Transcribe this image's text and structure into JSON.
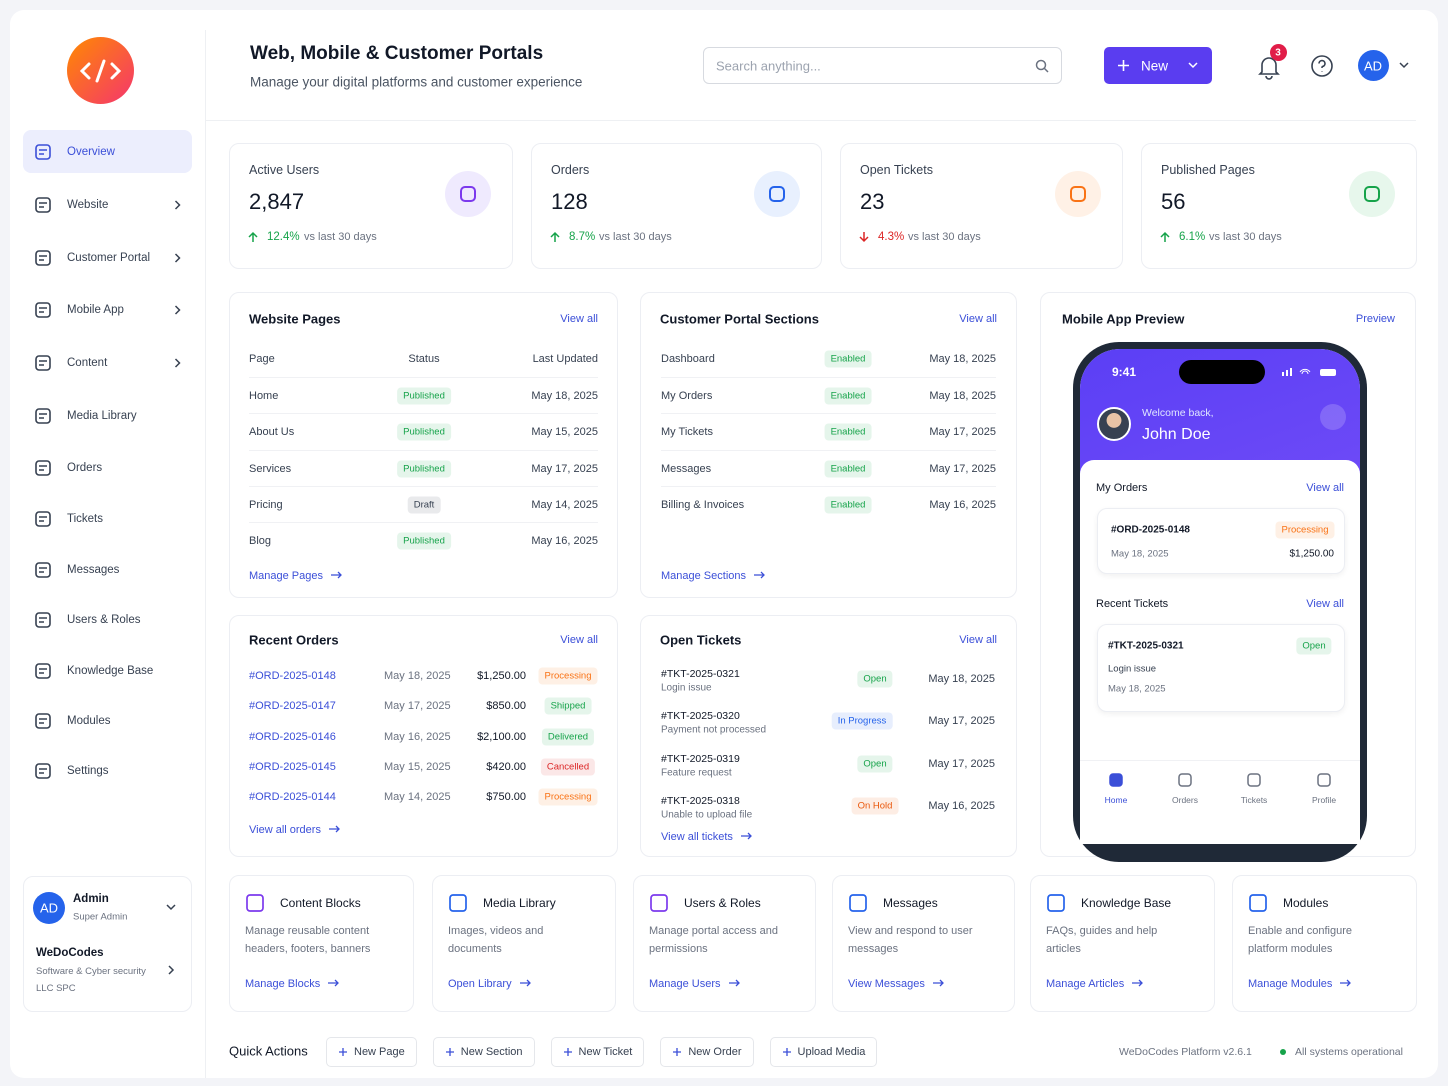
{
  "header": {
    "title": "Web, Mobile & Customer Portals",
    "subtitle": "Manage your digital platforms and customer experience",
    "search_placeholder": "Search anything...",
    "new_button": "New",
    "notification_count": "3",
    "avatar": "AD"
  },
  "sidebar": {
    "nav": [
      "Overview",
      "Website",
      "Customer Portal",
      "Mobile App",
      "Content",
      "Media Library",
      "Orders",
      "Tickets",
      "Messages",
      "Users & Roles",
      "Knowledge Base",
      "Modules",
      "Settings"
    ],
    "user": {
      "initials": "AD",
      "name": "Admin",
      "role": "Super Admin"
    },
    "org": {
      "name": "WeDoCodes",
      "description": "Software & Cyber security LLC SPC"
    }
  },
  "stats": [
    {
      "label": "Active Users",
      "value": "2,847",
      "change": "12.4%",
      "note": "vs last 30 days"
    },
    {
      "label": "Orders",
      "value": "128",
      "change": "8.7%",
      "note": "vs last 30 days"
    },
    {
      "label": "Open Tickets",
      "value": "23",
      "change": "4.3%",
      "note": "vs last 30 days"
    },
    {
      "label": "Published Pages",
      "value": "56",
      "change": "6.1%",
      "note": "vs last 30 days"
    }
  ],
  "badge_colors": {
    "Published": "#16a34a",
    "Draft": "#374151",
    "Enabled": "#16a34a",
    "Processing": "#f97316",
    "Shipped": "#16a34a",
    "Delivered": "#16a34a",
    "Cancelled": "#dc2626",
    "Open": "#16a34a",
    "In Progress": "#2563eb",
    "On Hold": "#ea580c"
  },
  "website_pages": {
    "title": "Website Pages",
    "view_all": "View all",
    "columns": [
      "Page",
      "Status",
      "Last Updated"
    ],
    "rows": [
      [
        "Home",
        "Published",
        "May 18, 2025"
      ],
      [
        "About Us",
        "Published",
        "May 15, 2025"
      ],
      [
        "Services",
        "Published",
        "May 17, 2025"
      ],
      [
        "Pricing",
        "Draft",
        "May 14, 2025"
      ],
      [
        "Blog",
        "Published",
        "May 16, 2025"
      ]
    ],
    "link": "Manage Pages"
  },
  "portal_sections": {
    "title": "Customer Portal Sections",
    "view_all": "View all",
    "rows": [
      [
        "Dashboard",
        "Enabled",
        "May 18, 2025"
      ],
      [
        "My Orders",
        "Enabled",
        "May 18, 2025"
      ],
      [
        "My Tickets",
        "Enabled",
        "May 17, 2025"
      ],
      [
        "Messages",
        "Enabled",
        "May 17, 2025"
      ],
      [
        "Billing & Invoices",
        "Enabled",
        "May 16, 2025"
      ]
    ],
    "link": "Manage Sections"
  },
  "mobile_preview": {
    "title": "Mobile App Preview",
    "link": "Preview",
    "time": "9:41",
    "welcome": "Welcome back,",
    "user": "John Doe",
    "orders_title": "My Orders",
    "orders_view_all": "View all",
    "order": {
      "id": "#ORD-2025-0148",
      "status": "Processing",
      "date": "May 18, 2025",
      "amount": "$1,250.00"
    },
    "tickets_title": "Recent Tickets",
    "tickets_view_all": "View all",
    "ticket": {
      "id": "#TKT-2025-0321",
      "status": "Open",
      "subject": "Login issue",
      "date": "May 18, 2025"
    },
    "tabs": [
      "Home",
      "Orders",
      "Tickets",
      "Profile"
    ]
  },
  "recent_orders": {
    "title": "Recent Orders",
    "view_all": "View all",
    "rows": [
      [
        "#ORD-2025-0148",
        "May 18, 2025",
        "$1,250.00",
        "Processing"
      ],
      [
        "#ORD-2025-0147",
        "May 17, 2025",
        "$850.00",
        "Shipped"
      ],
      [
        "#ORD-2025-0146",
        "May 16, 2025",
        "$2,100.00",
        "Delivered"
      ],
      [
        "#ORD-2025-0145",
        "May 15, 2025",
        "$420.00",
        "Cancelled"
      ],
      [
        "#ORD-2025-0144",
        "May 14, 2025",
        "$750.00",
        "Processing"
      ]
    ],
    "link": "View all orders"
  },
  "open_tickets": {
    "title": "Open Tickets",
    "view_all": "View all",
    "rows": [
      [
        "#TKT-2025-0321",
        "Login issue",
        "Open",
        "May 18, 2025"
      ],
      [
        "#TKT-2025-0320",
        "Payment not processed",
        "In Progress",
        "May 17, 2025"
      ],
      [
        "#TKT-2025-0319",
        "Feature request",
        "Open",
        "May 17, 2025"
      ],
      [
        "#TKT-2025-0318",
        "Unable to upload file",
        "On Hold",
        "May 16, 2025"
      ]
    ],
    "link": "View all tickets"
  },
  "modules": [
    {
      "title": "Content Blocks",
      "description": "Manage reusable content headers, footers, banners",
      "link": "Manage Blocks"
    },
    {
      "title": "Media Library",
      "description": "Images, videos and documents",
      "link": "Open Library"
    },
    {
      "title": "Users & Roles",
      "description": "Manage portal access and permissions",
      "link": "Manage Users"
    },
    {
      "title": "Messages",
      "description": "View and respond to user messages",
      "link": "View Messages"
    },
    {
      "title": "Knowledge Base",
      "description": "FAQs, guides and help articles",
      "link": "Manage Articles"
    },
    {
      "title": "Modules",
      "description": "Enable and configure platform modules",
      "link": "Manage Modules"
    }
  ],
  "quick_actions": {
    "label": "Quick Actions",
    "buttons": [
      "New Page",
      "New Section",
      "New Ticket",
      "New Order",
      "Upload Media"
    ]
  },
  "footer": {
    "version": "WeDoCodes Platform v2.6.1",
    "status": "All systems operational"
  }
}
